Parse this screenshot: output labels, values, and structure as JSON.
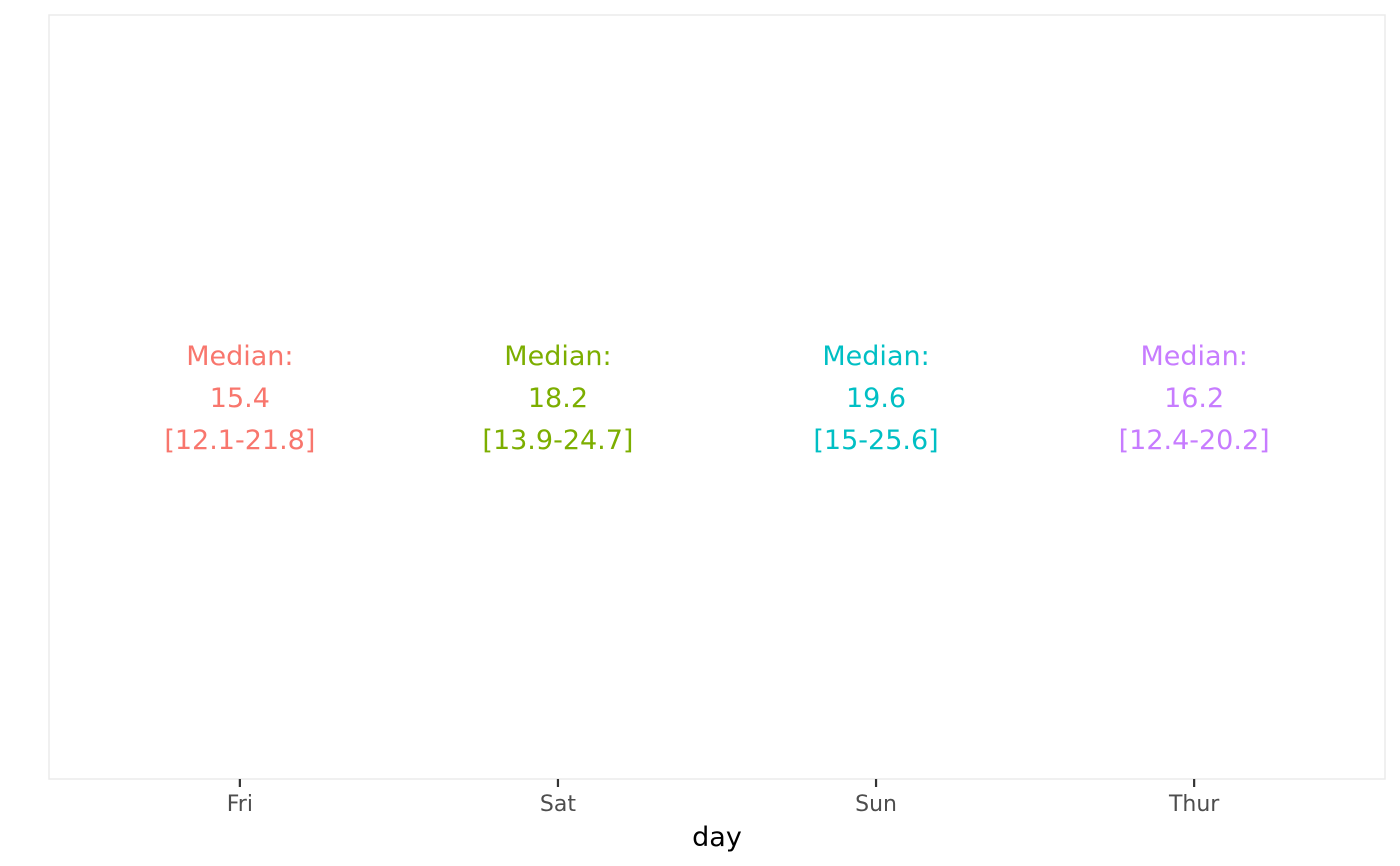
{
  "chart_data": {
    "type": "table",
    "title": "",
    "xlabel": "day",
    "ylabel": "",
    "categories": [
      "Fri",
      "Sat",
      "Sun",
      "Thur"
    ],
    "grid": false,
    "legend": "none",
    "annotations": [
      {
        "category": "Fri",
        "heading": "Median:",
        "median": "15.4",
        "range": "[12.1-21.8]",
        "color": "#F8766D"
      },
      {
        "category": "Sat",
        "heading": "Median:",
        "median": "18.2",
        "range": "[13.9-24.7]",
        "color": "#7CAE00"
      },
      {
        "category": "Sun",
        "heading": "Median:",
        "median": "19.6",
        "range": "[15-25.6]",
        "color": "#00BFC4"
      },
      {
        "category": "Thur",
        "heading": "Median:",
        "median": "16.2",
        "range": "[12.4-20.2]",
        "color": "#C77CFF"
      }
    ]
  }
}
